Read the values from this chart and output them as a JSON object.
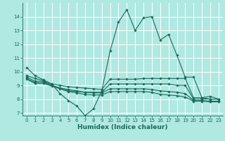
{
  "xlabel": "Humidex (Indice chaleur)",
  "xlim": [
    -0.5,
    23.5
  ],
  "ylim": [
    6.8,
    15.0
  ],
  "yticks": [
    7,
    8,
    9,
    10,
    11,
    12,
    13,
    14
  ],
  "xticks": [
    0,
    1,
    2,
    3,
    4,
    5,
    6,
    7,
    8,
    9,
    10,
    11,
    12,
    13,
    14,
    15,
    16,
    17,
    18,
    19,
    20,
    21,
    22,
    23
  ],
  "bg_color": "#b0e8e2",
  "grid_color": "#ffffff",
  "line_color": "#1a6b5a",
  "lines": [
    {
      "x": [
        0,
        1,
        2,
        3,
        4,
        5,
        6,
        7,
        8,
        9,
        10,
        11,
        12,
        13,
        14,
        15,
        16,
        17,
        18,
        19,
        20,
        21,
        22,
        23
      ],
      "y": [
        10.3,
        9.7,
        9.4,
        9.1,
        8.4,
        7.9,
        7.5,
        6.8,
        7.3,
        8.6,
        11.5,
        13.6,
        14.5,
        13.0,
        13.9,
        14.0,
        12.3,
        12.7,
        11.2,
        9.6,
        9.6,
        8.1,
        8.2,
        8.0
      ]
    },
    {
      "x": [
        0,
        1,
        2,
        3,
        4,
        5,
        6,
        7,
        8,
        9,
        10,
        11,
        12,
        13,
        14,
        15,
        16,
        17,
        18,
        19,
        20,
        21,
        22,
        23
      ],
      "y": [
        9.7,
        9.5,
        9.35,
        9.1,
        9.0,
        8.9,
        8.85,
        8.8,
        8.75,
        8.7,
        9.45,
        9.45,
        9.45,
        9.45,
        9.5,
        9.5,
        9.5,
        9.5,
        9.5,
        9.5,
        8.1,
        8.1,
        8.0,
        8.0
      ]
    },
    {
      "x": [
        0,
        1,
        2,
        3,
        4,
        5,
        6,
        7,
        8,
        9,
        10,
        11,
        12,
        13,
        14,
        15,
        16,
        17,
        18,
        19,
        20,
        21,
        22,
        23
      ],
      "y": [
        9.6,
        9.3,
        9.3,
        9.0,
        8.8,
        8.7,
        8.6,
        8.5,
        8.5,
        8.5,
        9.1,
        9.1,
        9.1,
        9.1,
        9.1,
        9.1,
        9.1,
        9.1,
        9.0,
        9.0,
        8.0,
        8.0,
        8.0,
        8.0
      ]
    },
    {
      "x": [
        0,
        1,
        2,
        3,
        4,
        5,
        6,
        7,
        8,
        9,
        10,
        11,
        12,
        13,
        14,
        15,
        16,
        17,
        18,
        19,
        20,
        21,
        22,
        23
      ],
      "y": [
        9.5,
        9.2,
        9.2,
        9.0,
        8.8,
        8.6,
        8.55,
        8.5,
        8.45,
        8.45,
        8.75,
        8.75,
        8.75,
        8.75,
        8.75,
        8.7,
        8.6,
        8.55,
        8.5,
        8.4,
        7.9,
        7.9,
        7.85,
        7.85
      ]
    },
    {
      "x": [
        0,
        1,
        2,
        3,
        4,
        5,
        6,
        7,
        8,
        9,
        10,
        11,
        12,
        13,
        14,
        15,
        16,
        17,
        18,
        19,
        20,
        21,
        22,
        23
      ],
      "y": [
        9.45,
        9.15,
        9.15,
        8.95,
        8.75,
        8.55,
        8.45,
        8.35,
        8.3,
        8.3,
        8.55,
        8.55,
        8.55,
        8.55,
        8.55,
        8.5,
        8.35,
        8.3,
        8.25,
        8.15,
        7.85,
        7.85,
        7.8,
        7.8
      ]
    }
  ],
  "marker": "D",
  "markersize": 1.8,
  "linewidth": 0.8,
  "tick_fontsize": 5.0,
  "xlabel_fontsize": 6.5
}
